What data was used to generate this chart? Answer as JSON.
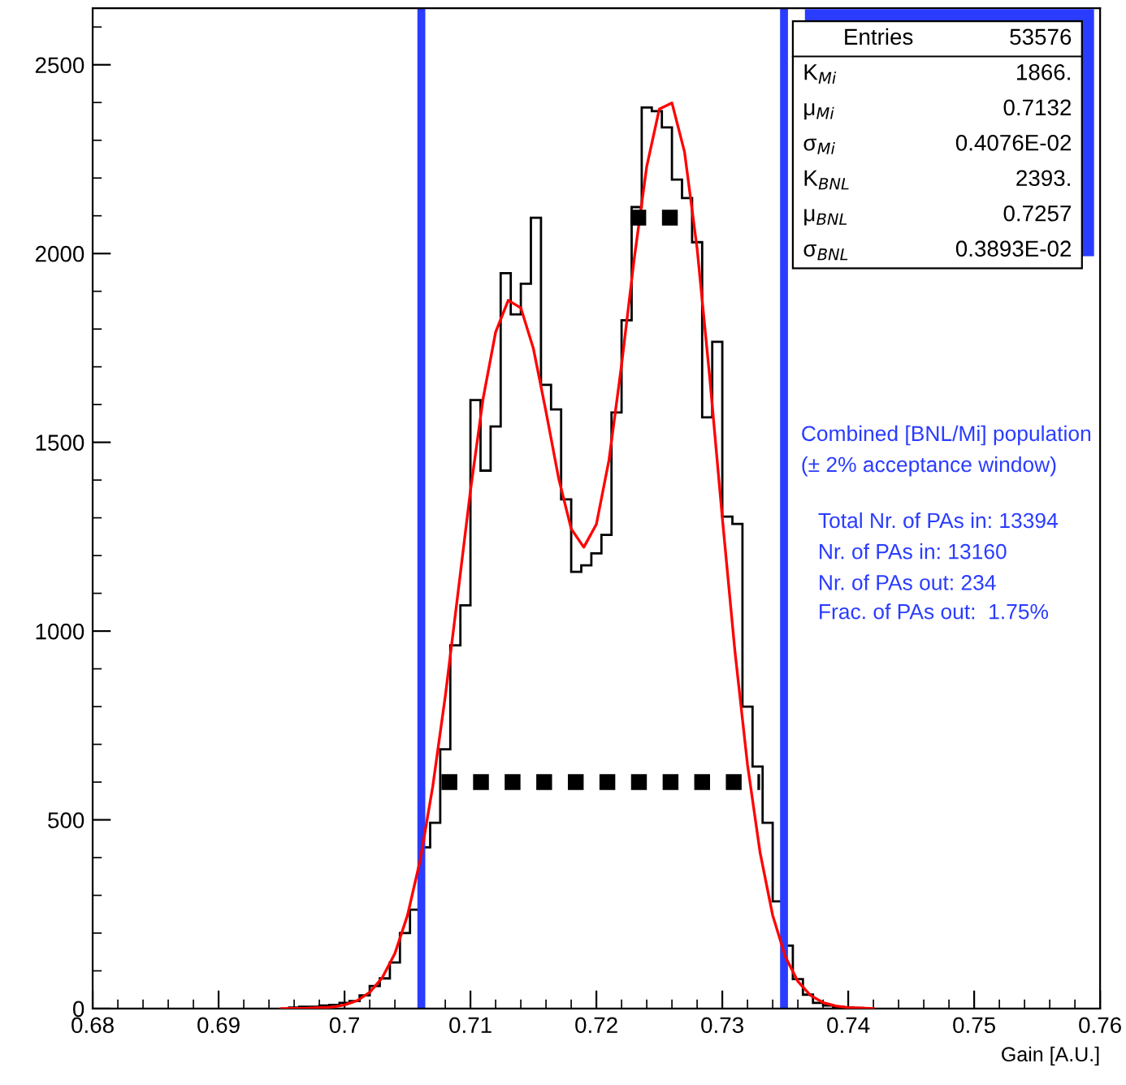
{
  "chart_data": {
    "type": "histogram",
    "xlabel": "Gain [A.U.]",
    "bins": [
      0.6956,
      0.6964,
      0.6972,
      0.698,
      0.6988,
      0.6996,
      0.7004,
      0.7012,
      0.702,
      0.7028,
      0.7036,
      0.7044,
      0.7052,
      0.706,
      0.7068,
      0.7076,
      0.7084,
      0.7092,
      0.71,
      0.7108,
      0.7116,
      0.7124,
      0.7132,
      0.714,
      0.7148,
      0.7156,
      0.7164,
      0.7172,
      0.718,
      0.7188,
      0.7196,
      0.7204,
      0.7212,
      0.722,
      0.7228,
      0.7236,
      0.7244,
      0.7252,
      0.726,
      0.7268,
      0.7276,
      0.7284,
      0.7292,
      0.73,
      0.7308,
      0.7316,
      0.7324,
      0.7332,
      0.734,
      0.7348,
      0.7356,
      0.7364,
      0.7372,
      0.738,
      0.7388,
      0.7396,
      0.7404,
      0.7412
    ],
    "values": [
      3,
      5,
      5,
      8,
      10,
      15,
      20,
      35,
      60,
      80,
      122,
      200,
      262,
      427,
      492,
      687,
      962,
      1068,
      1612,
      1425,
      1542,
      1948,
      1839,
      1920,
      2095,
      1652,
      1587,
      1349,
      1157,
      1174,
      1206,
      1255,
      1579,
      1823,
      2123,
      2387,
      2377,
      2334,
      2196,
      2147,
      2030,
      1566,
      1766,
      1303,
      1284,
      800,
      641,
      492,
      284,
      167,
      78,
      37,
      15,
      8,
      5,
      3,
      2
    ],
    "color": "#000000",
    "series": [
      {
        "type": "line",
        "color": "#ff0000",
        "line_style": "solid",
        "x": [
          0.695,
          0.697,
          0.699,
          0.7,
          0.701,
          0.702,
          0.703,
          0.704,
          0.705,
          0.706,
          0.707,
          0.708,
          0.709,
          0.71,
          0.711,
          0.712,
          0.713,
          0.714,
          0.715,
          0.716,
          0.717,
          0.718,
          0.719,
          0.72,
          0.721,
          0.722,
          0.723,
          0.724,
          0.725,
          0.726,
          0.727,
          0.728,
          0.729,
          0.73,
          0.731,
          0.732,
          0.733,
          0.734,
          0.735,
          0.736,
          0.737,
          0.738,
          0.739,
          0.74,
          0.742
        ],
        "values": [
          0,
          1,
          4,
          10,
          21,
          43,
          82,
          146,
          247,
          392,
          587,
          827,
          1098,
          1372,
          1615,
          1792,
          1876,
          1856,
          1748,
          1581,
          1405,
          1271,
          1222,
          1283,
          1453,
          1705,
          1985,
          2231,
          2383,
          2399,
          2269,
          2013,
          1672,
          1300,
          947,
          646,
          413,
          247,
          138,
          72,
          35,
          16,
          7,
          3,
          0
        ]
      },
      {
        "type": "line",
        "color": "#000000",
        "line_style": "dotted",
        "x": [
          0.7077,
          0.733
        ],
        "values": [
          600,
          600
        ]
      },
      {
        "type": "line",
        "color": "#000000",
        "line_style": "dotted",
        "x": [
          0.7227,
          0.7276
        ],
        "values": [
          2095,
          2095
        ]
      }
    ],
    "xlim": [
      0.68,
      0.76
    ],
    "xticks": [
      0.68,
      0.69,
      0.7,
      0.71,
      0.72,
      0.73,
      0.74,
      0.75,
      0.76
    ],
    "ylim": [
      0,
      2650
    ],
    "yticks": [
      0,
      500,
      1000,
      1500,
      2000,
      2500
    ],
    "ref_lines": [
      {
        "axis": "x",
        "value": 0.7061,
        "color": "#2a3cff"
      },
      {
        "axis": "x",
        "value": 0.7349,
        "color": "#2a3cff"
      }
    ],
    "grid": false,
    "annotations": [
      "Entries\t53576",
      "K$_{Mi}$\t1866.",
      "μ$_{Mi}$\t0.7132",
      "σ$_{Mi}$\t0.4076E-02",
      "K$_{BNL}$\t2393.",
      "μ$_{BNL}$\t0.7257",
      "σ$_{BNL}$\t0.3893E-02",
      "Combined [BNL/Mi] population",
      "(± 2% acceptance window)",
      "Total Nr. of PAs in: 13394",
      "Nr. of PAs in: 13160",
      "Nr. of PAs out: 234",
      "Frac. of PAs out:  1.75%"
    ]
  }
}
